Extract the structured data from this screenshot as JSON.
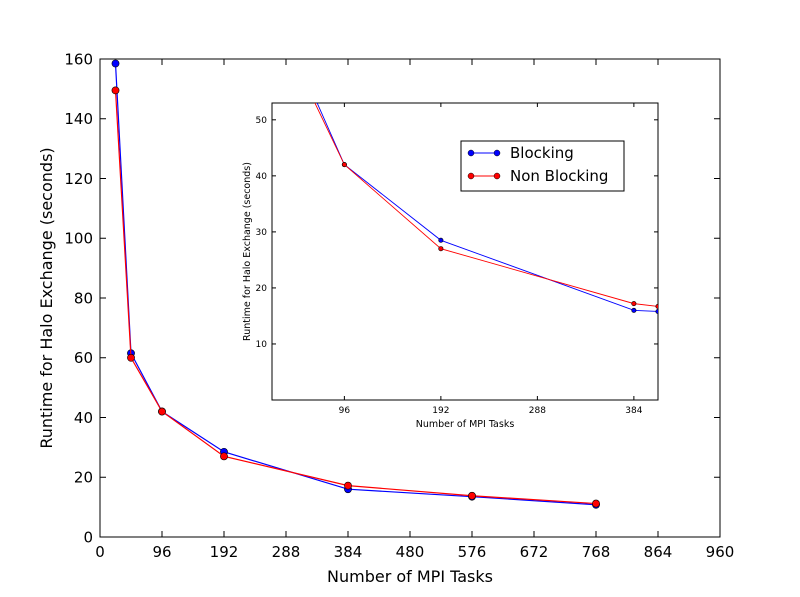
{
  "chart_data": [
    {
      "type": "line",
      "xlabel": "Number of MPI Tasks",
      "ylabel": "Runtime for Halo Exchange (seconds)",
      "xlim": [
        0,
        960
      ],
      "ylim": [
        0,
        160
      ],
      "xticks": [
        "0",
        "96",
        "192",
        "288",
        "384",
        "480",
        "576",
        "672",
        "768",
        "864",
        "960"
      ],
      "yticks": [
        "0",
        "20",
        "40",
        "60",
        "80",
        "100",
        "120",
        "140",
        "160"
      ],
      "grid": false,
      "series": [
        {
          "name": "Blocking",
          "color": "#0000ff",
          "x": [
            24,
            48,
            96,
            192,
            384,
            576,
            768
          ],
          "y": [
            158.5,
            61.5,
            42,
            28.5,
            16,
            13.5,
            10.8
          ]
        },
        {
          "name": "Non Blocking",
          "color": "#ff0000",
          "x": [
            24,
            48,
            96,
            192,
            384,
            576,
            768
          ],
          "y": [
            149.5,
            60,
            42,
            27,
            17.2,
            13.8,
            11.2
          ]
        }
      ]
    },
    {
      "type": "line",
      "xlabel": "Number of MPI Tasks",
      "ylabel": "Runtime for Halo Exchange (seconds)",
      "xlim": [
        24,
        408
      ],
      "ylim": [
        0,
        53
      ],
      "xticks": [
        "96",
        "192",
        "288",
        "384"
      ],
      "yticks": [
        "10",
        "20",
        "30",
        "40",
        "50"
      ],
      "grid": false,
      "legend": "top-right",
      "series": [
        {
          "name": "Blocking",
          "color": "#0000ff",
          "x": [
            48,
            96,
            192,
            384,
            408
          ],
          "y": [
            61.5,
            42,
            28.5,
            16,
            15.8
          ]
        },
        {
          "name": "Non Blocking",
          "color": "#ff0000",
          "x": [
            48,
            96,
            192,
            384,
            408
          ],
          "y": [
            60,
            42,
            27,
            17.2,
            16.7
          ]
        }
      ]
    }
  ]
}
